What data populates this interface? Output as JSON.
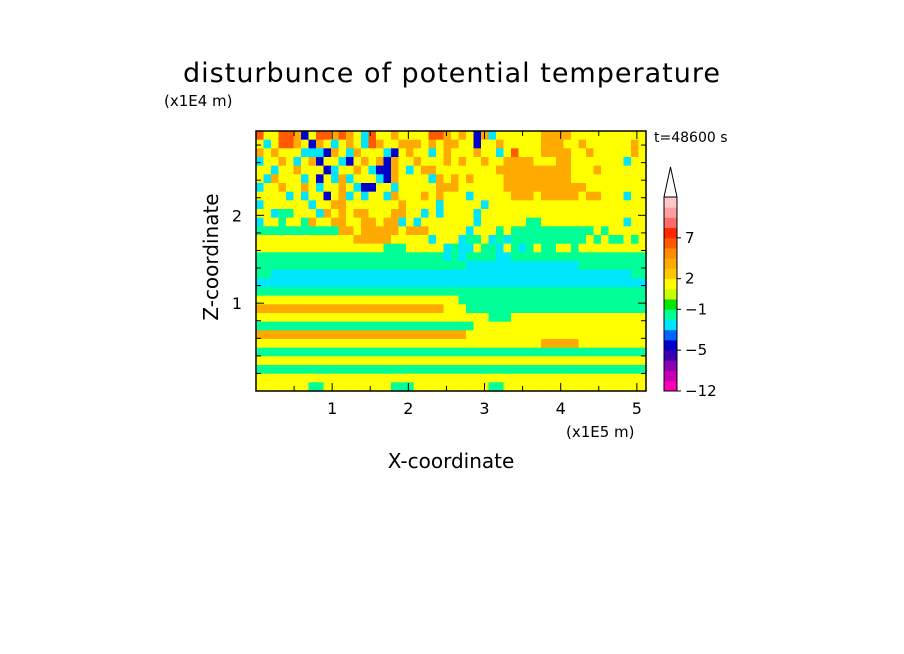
{
  "chart_data": {
    "type": "heatmap",
    "title": "disturbunce of potential temperature",
    "xlabel": "X-coordinate",
    "ylabel": "Z-coordinate",
    "x_unit": "(x1E5 m)",
    "y_unit": "(x1E4 m)",
    "annotation": "t=48600 s",
    "xlim": [
      0,
      5.12
    ],
    "ylim": [
      0,
      2.96
    ],
    "x_ticks": [
      "1",
      "2",
      "3",
      "4",
      "5"
    ],
    "y_ticks": [
      "1",
      "2"
    ],
    "colorbar": {
      "tick_labels": [
        "7",
        "2",
        "−1",
        "−5",
        "−12"
      ],
      "colors": [
        "#ff00b4",
        "#c800b4",
        "#8c00b4",
        "#3c00b4",
        "#0000c8",
        "#0064ff",
        "#00e6ff",
        "#00ff96",
        "#00e600",
        "#c8ff00",
        "#ffff00",
        "#ffc800",
        "#ffaa00",
        "#ff8c00",
        "#ff5a00",
        "#ff2800",
        "#ff6a6a",
        "#ffa0a0",
        "#ffc8c8"
      ],
      "extend": "max"
    },
    "field_rows": [
      "RYYRROBYRROROYCRYYOYYYYRROYOYBOCYYYYYYOOOOYYYYYYYYYY",
      "YCYRROYBOYCYOYCROYYOOOYOYOOYYBYYOYYYYYOOOYYOYYYYYYOY",
      "OYOYYYCCCBOYCOYYYCBYOYYCYOYYYOYYCYRYYYOOOOYYOYYYYYOY",
      "CYYOYCYOBYYCBYOYOBOYYOYYYOYOYYOYYOOOOYYYOOYYYYYYYCYY",
      "YYCYYOYYYBCYYOYCBBOYCYOOYYYYYYYYOOOOOOOOOOYYYOYYYYYY",
      "YCOYYYCYBYCOCYYYCBOYYYYCOYOYOYYYYOOOOOOOOOYYYYYYYYYY",
      "CYYOYYOYCYYOYCBBYYCYYYYYOOOYYYYYYOOOOOOOOOOOYYYYYYYY",
      "YYYYCYCYYBYOCYCYYCOYYYOYOYYYCYYYYYOOOYOOOOOYOOYYYCYY",
      "CYYYYYYCYYOOYYYYYYYOYYYYCYYYYYCYYYYYYYYYYYYYYYYYYYYY",
      "YYCGGYYYCOYOYOOYYYOOYYCYCYYYYCYYYYYYYYYYYYYYYYYYYYYY",
      "CYYGYYGOYYOOYYOOYOOCYCYYYYYYYCYYYYYYGGYYYYYYYYYYYCYY",
      "GGGGGGGGGGGOOYOOOOOYOOOYYYYYCYYYGYGGGGGGGGGGGYGYYYYY",
      "YYYYYYYYYYYYYOOOOOYYYYYCYYYCGGYCGCGGGGGGGGGGYGYGGYGY",
      "YYYYYYYYYYYYYYYYYGGGYYYYYCGCCYGGCYGCGYGGYYGYYYYYYYYY",
      "GGGGGGGGGGGGGGGGGGGGGGGGGCGCGGGGCCGGGGGGGGGGGGGGGGGG",
      "GGGGGGGGGGGGGGGGGGGGGGGGGGGGCCCCCCCCCCCCCCCGGGGGGGGG",
      "GGCCCCCCCCCCCCCCCCCCCCCCCCCCCCCCCCCCCCCCCCCCCCCCCCGG",
      "CCCCCCCCCCCCCCCCCCCCCCCCCCCCCCCCCCCCCCCCCCCCCCCCCCCC",
      "GGGGGGGGGGGGGGGGGGGGGGGGGGGGGGGGGGGGGGGGGGGGGGGGGGGG",
      "YYYYYYYYYYYYYYYYYYYYYYYYYYYGGGGGGGGGGGGGGGGGGGGGGGGG",
      "OOOOOOOOOOOOOOOOOOOOOOOOOYYYGGGGGGGGGGGGGGGGGGGGGGGG",
      "YYYYYYYYYYYYYYYYYYYYYYYYYYYYYYYGGGYYYYYYYYYYYYYYYYYY",
      "GGGGGGGGGGGGGGGGGGGGGGGGGGGGGYYYYYYYYYYYYYYYYYYYYYYY",
      "OOOOOOOOOOOOOOOOOOOOOOOOOOOOYYYYYYYYYYYYYYYYYYYYYYYY",
      "YYYYYYYYYYYYYYYYYYYYYYYYYYYYYYYYYYYYYYOOOOOYYYYYYYYY",
      "GGGGGGGGGGGGGGGGGGGGGGGGGGGGGGGGGGGGGGGGGGGGGGGGGGGG",
      "YYYYYYYYYYYYYYYYYYYYYYYYYYYYYYYYYYYYYYYYYYYYYYYYYYYY",
      "GGGGGGGGGGGGGGGGGGGGGGGGGGGGGGGGGGGGGGGGGGGGGGGGGGGG",
      "YYYYYYYYYYYYYYYYYYYYYYYYYYYYYYYYYYYYYYYYYYYYYYYYYYYY",
      "YYYYYYYGGYYYYYYYYYGGGYYYYYYYYYYGGYYYYYYYYYYYYYYYYYYY"
    ],
    "field_legend": {
      "R": "#ff5a00",
      "O": "#ffaa00",
      "Y": "#ffff00",
      "G": "#00ff96",
      "C": "#00e6ff",
      "B": "#0000c8"
    }
  }
}
